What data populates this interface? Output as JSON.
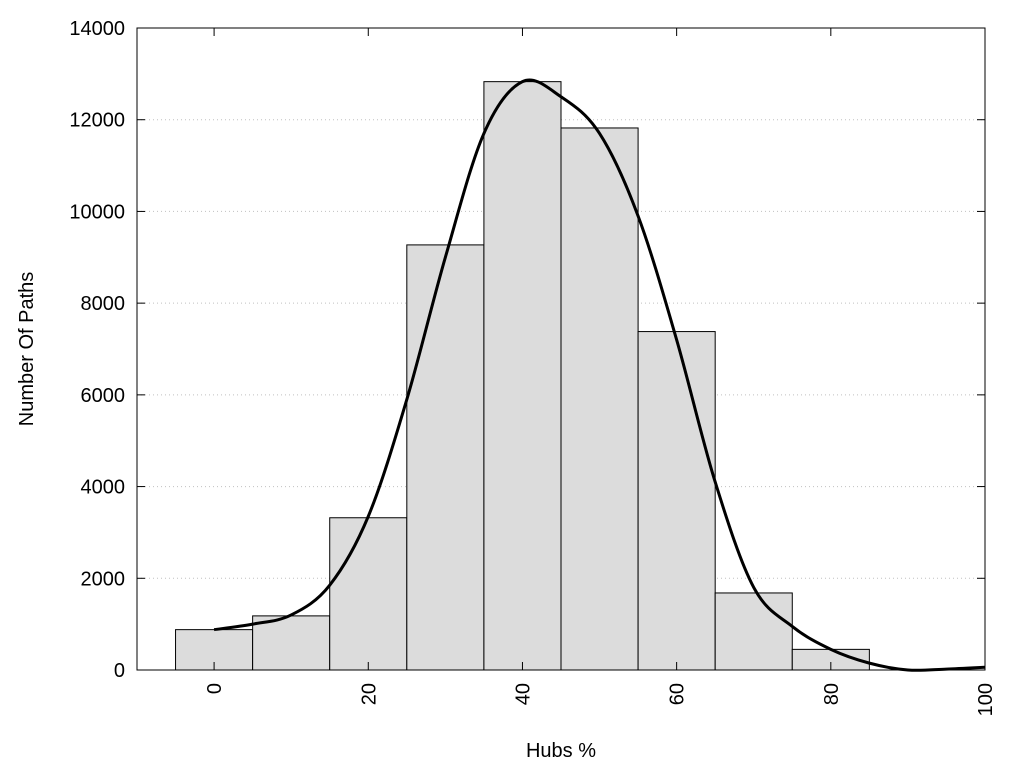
{
  "chart_data": {
    "type": "bar",
    "title": "",
    "xlabel": "Hubs %",
    "ylabel": "Number Of Paths",
    "xlim": [
      -10,
      100
    ],
    "ylim": [
      0,
      14000
    ],
    "xticks": [
      0,
      20,
      40,
      60,
      80,
      100
    ],
    "yticks": [
      0,
      2000,
      4000,
      6000,
      8000,
      10000,
      12000,
      14000
    ],
    "grid": "horizontal-dotted",
    "bin_width": 10,
    "bins": [
      {
        "x": 0,
        "value": 880
      },
      {
        "x": 10,
        "value": 1180
      },
      {
        "x": 20,
        "value": 3320
      },
      {
        "x": 30,
        "value": 9270
      },
      {
        "x": 40,
        "value": 12830
      },
      {
        "x": 50,
        "value": 11820
      },
      {
        "x": 60,
        "value": 7380
      },
      {
        "x": 70,
        "value": 1680
      },
      {
        "x": 80,
        "value": 450
      },
      {
        "x": 90,
        "value": 0
      }
    ],
    "curve": [
      [
        0,
        880
      ],
      [
        5,
        1000
      ],
      [
        10,
        1200
      ],
      [
        15,
        1850
      ],
      [
        20,
        3350
      ],
      [
        25,
        5900
      ],
      [
        30,
        9000
      ],
      [
        35,
        11700
      ],
      [
        40,
        12830
      ],
      [
        45,
        12500
      ],
      [
        50,
        11700
      ],
      [
        55,
        9900
      ],
      [
        60,
        7200
      ],
      [
        65,
        4100
      ],
      [
        70,
        1800
      ],
      [
        75,
        950
      ],
      [
        80,
        450
      ],
      [
        85,
        150
      ],
      [
        90,
        0
      ],
      [
        95,
        20
      ],
      [
        100,
        60
      ]
    ],
    "colors": {
      "bar_fill": "#dcdcdc",
      "bar_stroke": "#000000",
      "curve": "#000000",
      "grid": "#c0c0c0"
    }
  }
}
